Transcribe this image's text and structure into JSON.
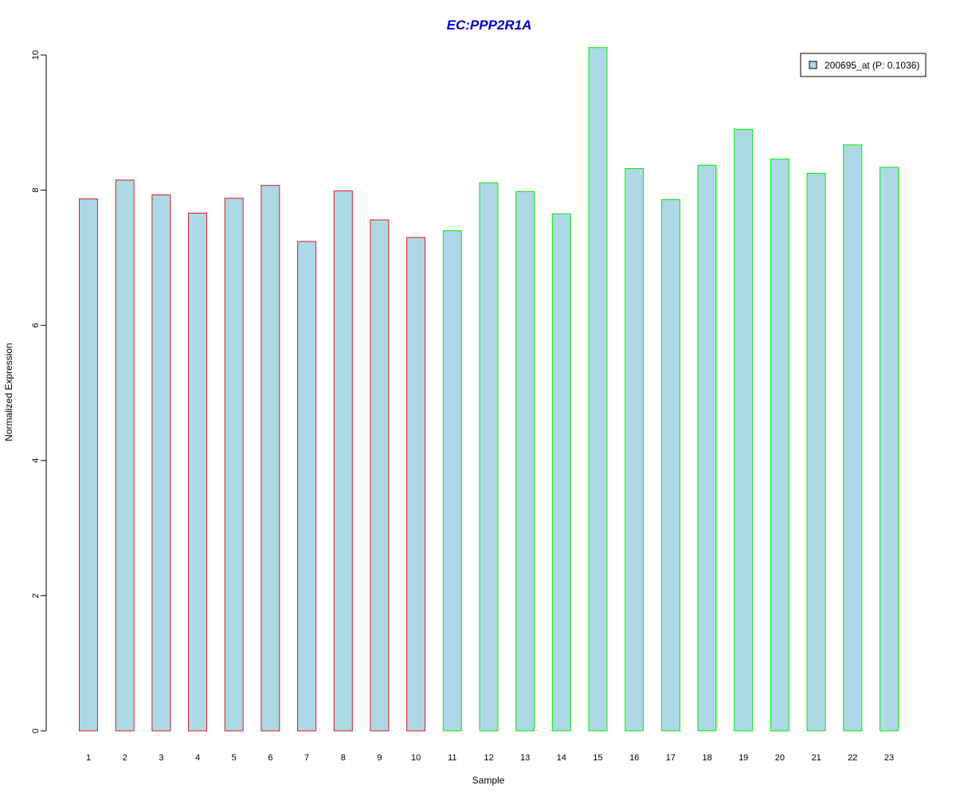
{
  "chart_data": {
    "type": "bar",
    "title": "EC:PPP2R1A",
    "xlabel": "Sample",
    "ylabel": "Normalized Expression",
    "categories": [
      "1",
      "2",
      "3",
      "4",
      "5",
      "6",
      "7",
      "8",
      "9",
      "10",
      "11",
      "12",
      "13",
      "14",
      "15",
      "16",
      "17",
      "18",
      "19",
      "20",
      "21",
      "22",
      "23"
    ],
    "series": [
      {
        "name": "200695_at (P: 0.1036)",
        "values": [
          7.87,
          8.15,
          7.93,
          7.66,
          7.88,
          8.07,
          7.24,
          7.99,
          7.56,
          7.3,
          7.4,
          8.11,
          7.98,
          7.65,
          10.11,
          8.32,
          7.86,
          8.37,
          8.9,
          8.46,
          8.25,
          8.67,
          8.34
        ]
      }
    ],
    "groups": [
      {
        "border_color": "#e31a1c",
        "samples": [
          1,
          2,
          3,
          4,
          5,
          6,
          7,
          8,
          9,
          10
        ]
      },
      {
        "border_color": "#00ee00",
        "samples": [
          11,
          12,
          13,
          14,
          15,
          16,
          17,
          18,
          19,
          20,
          21,
          22,
          23
        ]
      }
    ],
    "ylim": [
      0,
      10
    ],
    "yticks": [
      "0",
      "2",
      "4",
      "6",
      "8",
      "10"
    ],
    "grid": false,
    "legend_position": "top-right",
    "colors": {
      "title": "#0000cc",
      "bar_fill": "#add8e6",
      "axis": "#000000"
    }
  }
}
